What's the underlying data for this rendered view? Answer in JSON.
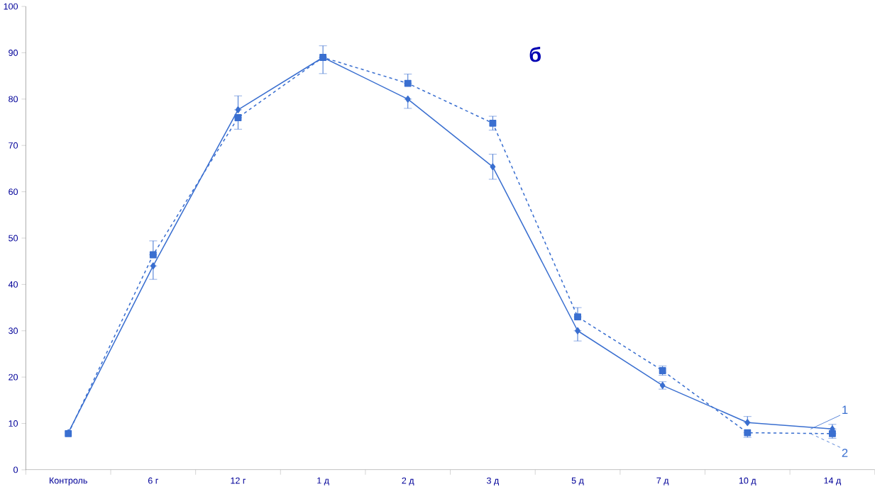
{
  "chart_data": {
    "type": "line",
    "title": "б",
    "categories": [
      "Контроль",
      "6 г",
      "12 г",
      "1 д",
      "2 д",
      "3 д",
      "5 д",
      "7 д",
      "10 д",
      "14 д"
    ],
    "series": [
      {
        "name": "1",
        "color": "#3a6fd0",
        "marker": "diamond",
        "line_style": "solid",
        "values": [
          8,
          44,
          77.7,
          89,
          80,
          65.4,
          30,
          18.2,
          10.2,
          8.8
        ],
        "errors": [
          null,
          [
            41.1,
            44
          ],
          [
            77.7,
            80.7
          ],
          [
            85.5,
            89
          ],
          [
            78,
            80
          ],
          2.7,
          [
            27.8,
            30
          ],
          0.8,
          [
            10.2,
            11.5
          ],
          [
            8.8,
            9.8
          ]
        ]
      },
      {
        "name": "2",
        "color": "#3a6fd0",
        "marker": "square",
        "line_style": "dashed",
        "values": [
          7.8,
          46.4,
          76,
          89,
          83.4,
          74.8,
          33,
          21.4,
          8,
          7.8
        ],
        "errors": [
          null,
          [
            46.4,
            49.4
          ],
          [
            73.5,
            76
          ],
          [
            89,
            91.5
          ],
          [
            83.4,
            85.4
          ],
          1.5,
          [
            33,
            35
          ],
          1,
          [
            7,
            8
          ],
          [
            6.8,
            7.8
          ]
        ]
      }
    ],
    "ylim": [
      0,
      100
    ],
    "yticks": [
      0,
      10,
      20,
      30,
      40,
      50,
      60,
      70,
      80,
      90,
      100
    ]
  }
}
